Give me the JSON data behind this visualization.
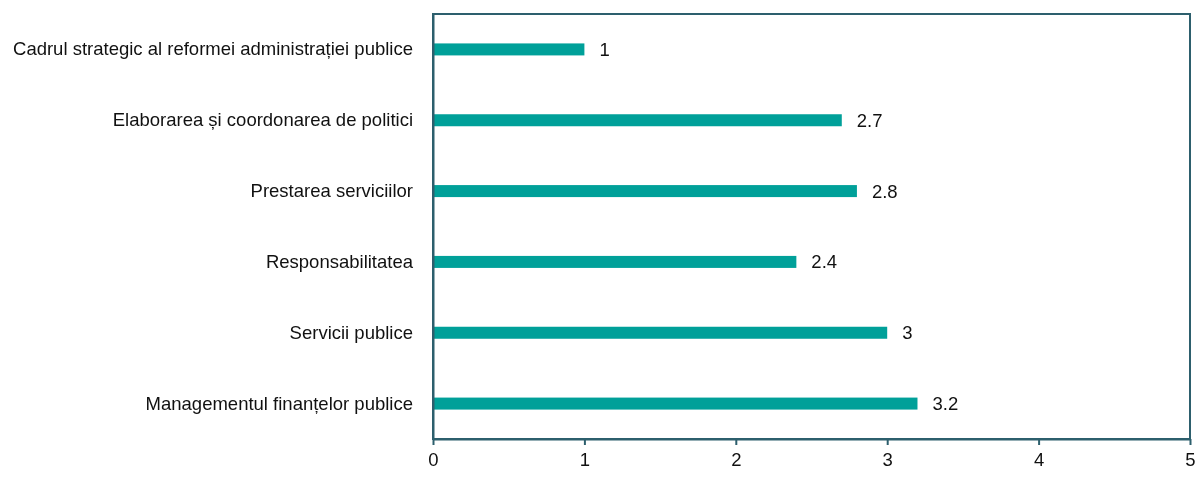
{
  "chart_data": {
    "type": "bar",
    "orientation": "horizontal",
    "categories": [
      "Cadrul strategic al reformei administrației publice",
      "Elaborarea și coordonarea de politici",
      "Prestarea serviciilor",
      "Responsabilitatea",
      "Servicii publice",
      "Managementul finanțelor publice"
    ],
    "values": [
      1,
      2.7,
      2.8,
      2.4,
      3,
      3.2
    ],
    "color": "#00a099",
    "xlim": [
      0,
      5
    ],
    "xticks": [
      0,
      1,
      2,
      3,
      4,
      5
    ],
    "data_labels": true
  }
}
